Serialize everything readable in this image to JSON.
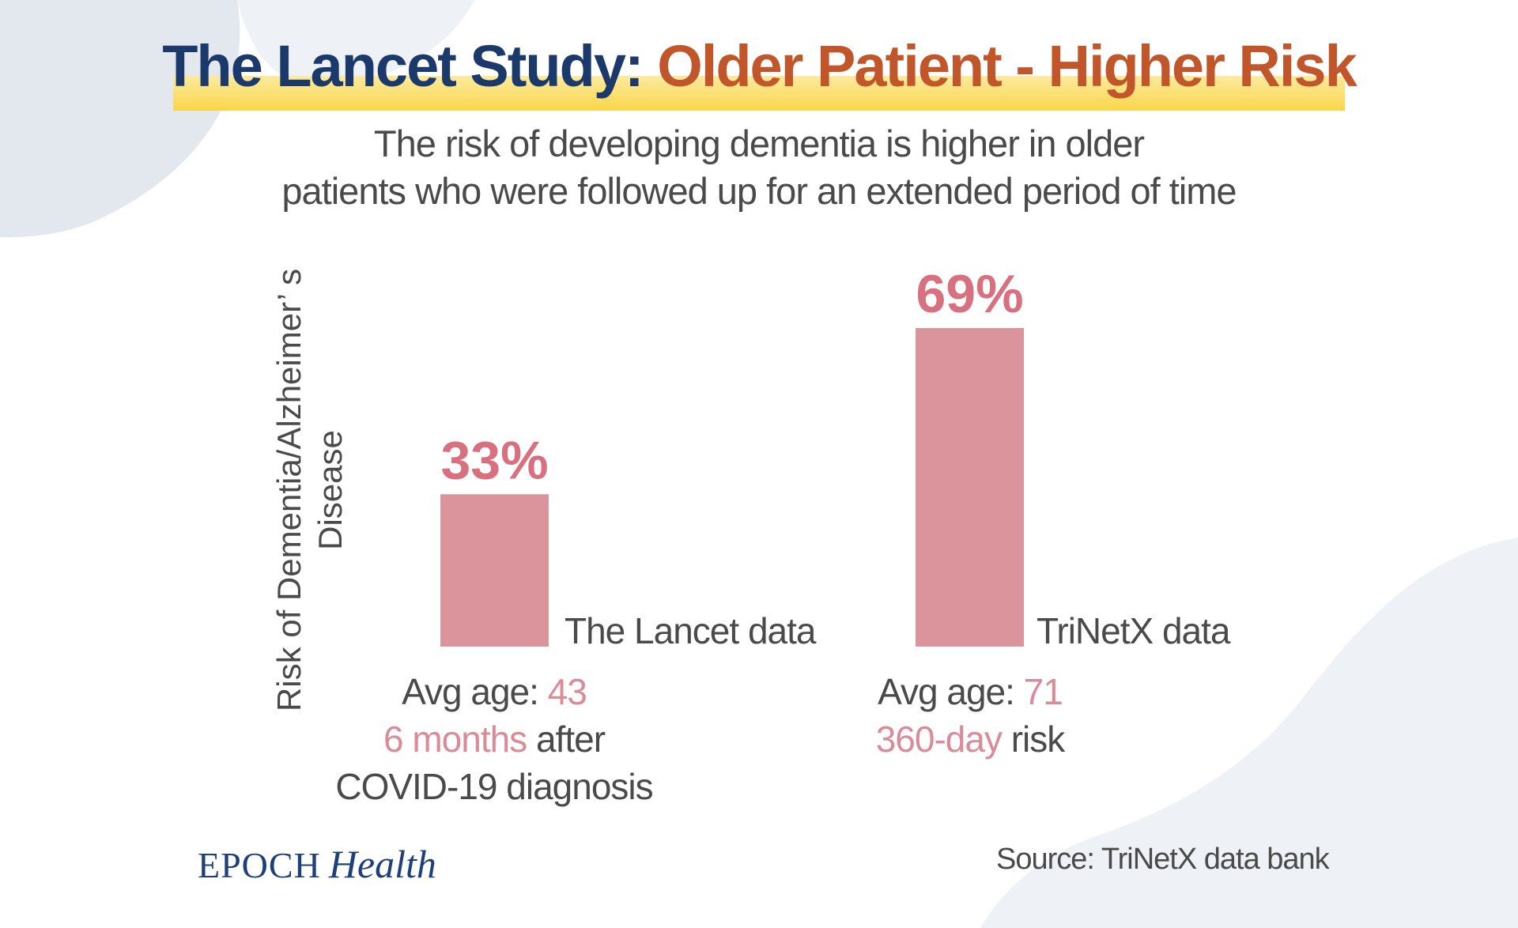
{
  "title": {
    "part1": "The Lancet Study:",
    "part2": "Older Patient - Higher Risk"
  },
  "subtitle": {
    "line1": "The risk of developing dementia is higher in older",
    "line2": "patients who were followed up for an extended period of time"
  },
  "colors": {
    "bar": "#db949b",
    "value_label": "#d9707f",
    "title_blue": "#1b3a6b",
    "title_orange": "#c0562a",
    "highlight": "#d98b97"
  },
  "notes": {
    "lancet": {
      "line1_prefix": "Avg age: ",
      "line1_value": "43",
      "line2_highlight": "6 months",
      "line2_suffix": " after",
      "line3": "COVID-19 diagnosis"
    },
    "trinetx": {
      "line1_prefix": "Avg age: ",
      "line1_value": "71",
      "line2_highlight": "360-day",
      "line2_suffix": " risk"
    }
  },
  "footer": {
    "brand_epoch": "EPOCH",
    "brand_health": "Health",
    "source": "Source: TriNetX data bank"
  },
  "chart_data": {
    "type": "bar",
    "title": "The Lancet Study: Older Patient - Higher Risk",
    "xlabel": "",
    "ylabel": "Risk of Dementia/Alzheimer’ s Disease",
    "ylabel_lines": [
      "Risk of Dementia/Alzheimer’ s",
      "Disease"
    ],
    "categories": [
      "The Lancet data",
      "TriNetX data"
    ],
    "values": [
      33,
      69
    ],
    "value_labels": [
      "33%",
      "69%"
    ],
    "ylim": [
      0,
      100
    ],
    "grid": false,
    "legend": "none"
  }
}
